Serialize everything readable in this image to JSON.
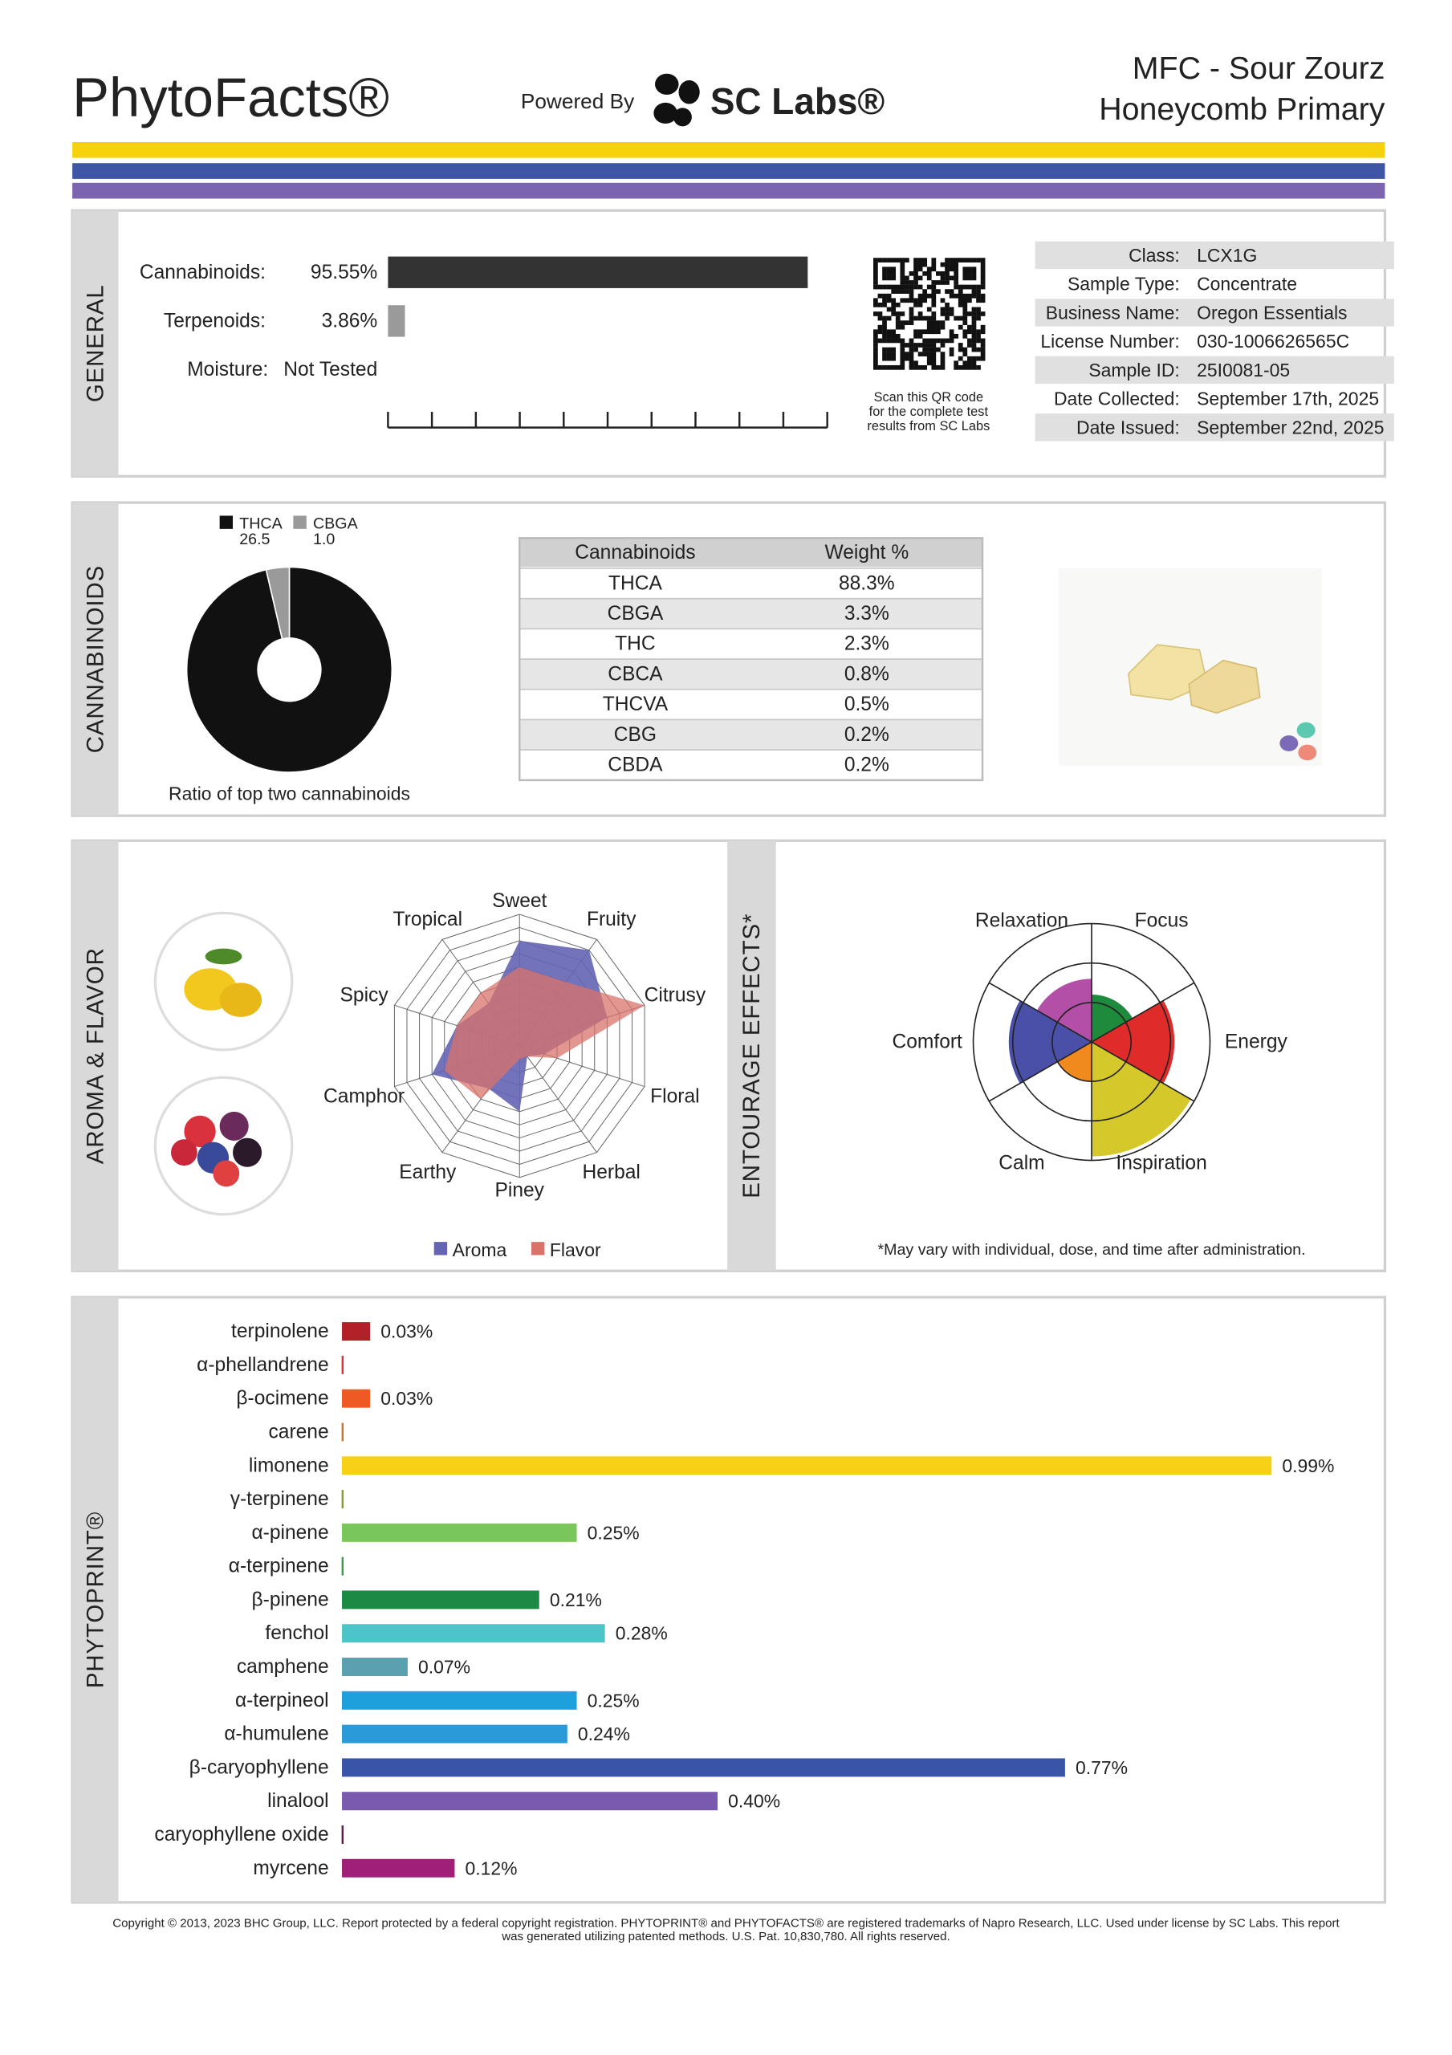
{
  "header": {
    "title": "PhytoFacts®",
    "powered_by": "Powered By",
    "lab": "SC Labs®",
    "product": "MFC - Sour Zourz",
    "product_sub": "Honeycomb Primary"
  },
  "general": {
    "section": "GENERAL",
    "bars": [
      {
        "name": "Cannabinoids:",
        "value": 95.55,
        "value_label": "95.55%",
        "color": "#333333"
      },
      {
        "name": "Terpenoids:",
        "value": 3.86,
        "value_label": "3.86%",
        "color": "#9a9a9a"
      }
    ],
    "moisture": {
      "name": "Moisture:",
      "value_label": "Not Tested"
    },
    "qr_caption": [
      "Scan this QR code",
      "for the complete test",
      "results from SC Labs"
    ],
    "info": [
      [
        "Class:",
        "LCX1G"
      ],
      [
        "Sample Type:",
        "Concentrate"
      ],
      [
        "Business Name:",
        "Oregon Essentials"
      ],
      [
        "License Number:",
        "030-1006626565C"
      ],
      [
        "Sample ID:",
        "25I0081-05"
      ],
      [
        "Date Collected:",
        "September 17th, 2025"
      ],
      [
        "Date Issued:",
        "September 22nd, 2025"
      ]
    ]
  },
  "cannabinoids": {
    "section": "CANNABINOIDS",
    "pie": {
      "type": "pie",
      "caption": "Ratio of top two cannabinoids",
      "series": [
        {
          "name": "THCA",
          "value": 26.5,
          "color": "#111111"
        },
        {
          "name": "CBGA",
          "value": 1.0,
          "value_label": "1.0",
          "color": "#9a9a9a"
        }
      ]
    },
    "table": {
      "header": [
        "Cannabinoids",
        "Weight %"
      ],
      "rows": [
        [
          "THCA",
          "88.3%"
        ],
        [
          "CBGA",
          "3.3%"
        ],
        [
          "THC",
          "2.3%"
        ],
        [
          "CBCA",
          "0.8%"
        ],
        [
          "THCVA",
          "0.5%"
        ],
        [
          "CBG",
          "0.2%"
        ],
        [
          "CBDA",
          "0.2%"
        ]
      ]
    }
  },
  "aroma": {
    "section": "AROMA & FLAVOR",
    "chart": {
      "type": "radar",
      "axes": [
        "Sweet",
        "Fruity",
        "Citrusy",
        "Floral",
        "Herbal",
        "Piney",
        "Earthy",
        "Camphor",
        "Spicy",
        "Tropical"
      ],
      "rlim": [
        0,
        10
      ],
      "series": [
        {
          "name": "Aroma",
          "color": "#6464b4",
          "values": [
            8,
            9,
            7,
            2,
            1,
            5,
            4,
            7,
            5,
            4
          ]
        },
        {
          "name": "Flavor",
          "color": "#d9736a",
          "values": [
            6,
            6,
            10,
            3,
            1,
            1,
            5,
            6,
            5,
            5
          ]
        }
      ]
    }
  },
  "entourage": {
    "section": "ENTOURAGE EFFECTS*",
    "note": "*May vary with individual, dose, and time after administration.",
    "chart": {
      "type": "polar-area",
      "rlim": [
        0,
        3
      ],
      "categories": [
        "Focus",
        "Energy",
        "Inspiration",
        "Calm",
        "Comfort",
        "Relaxation"
      ],
      "colors": [
        "#1e8a3c",
        "#e02b2b",
        "#d4c82a",
        "#f08a1e",
        "#4a4fa8",
        "#b44fa8"
      ],
      "values": [
        1.2,
        2.1,
        2.9,
        1.0,
        2.1,
        1.6
      ]
    }
  },
  "phytoprint": {
    "section": "PHYTOPRINT®",
    "terpenes": [
      {
        "name": "terpinolene",
        "value": 0.03,
        "value_label": "0.03%",
        "color": "#b22028"
      },
      {
        "name": "α-phellandrene",
        "value": null,
        "color": "#d8333a"
      },
      {
        "name": "β-ocimene",
        "value": 0.03,
        "value_label": "0.03%",
        "color": "#ef5a24"
      },
      {
        "name": "carene",
        "value": null,
        "color": "#c9742a"
      },
      {
        "name": "limonene",
        "value": 0.99,
        "value_label": "0.99%",
        "color": "#f7d117"
      },
      {
        "name": "γ-terpinene",
        "value": null,
        "color": "#8a9a2a"
      },
      {
        "name": "α-pinene",
        "value": 0.25,
        "value_label": "0.25%",
        "color": "#79c75a"
      },
      {
        "name": "α-terpinene",
        "value": null,
        "color": "#3a9a4a"
      },
      {
        "name": "β-pinene",
        "value": 0.21,
        "value_label": "0.21%",
        "color": "#1a8a44"
      },
      {
        "name": "fenchol",
        "value": 0.28,
        "value_label": "0.28%",
        "color": "#4cc4c8"
      },
      {
        "name": "camphene",
        "value": 0.07,
        "value_label": "0.07%",
        "color": "#5aa0b0"
      },
      {
        "name": "α-terpineol",
        "value": 0.25,
        "value_label": "0.25%",
        "color": "#1ea0dc"
      },
      {
        "name": "α-humulene",
        "value": 0.24,
        "value_label": "0.24%",
        "color": "#2a9ad8"
      },
      {
        "name": "β-caryophyllene",
        "value": 0.77,
        "value_label": "0.77%",
        "color": "#3a55a8"
      },
      {
        "name": "linalool",
        "value": 0.4,
        "value_label": "0.40%",
        "color": "#7a5aae"
      },
      {
        "name": "caryophyllene oxide",
        "value": null,
        "color": "#5a1a4a"
      },
      {
        "name": "myrcene",
        "value": 0.12,
        "value_label": "0.12%",
        "color": "#a02078"
      }
    ]
  },
  "footer": [
    "Copyright © 2013, 2023 BHC Group, LLC. Report protected by a federal copyright registration. PHYTOPRINT® and PHYTOFACTS® are registered trademarks of Napro Research, LLC. Used under license by SC Labs. This report",
    "was generated utilizing patented methods. U.S. Pat. 10,830,780. All rights reserved."
  ]
}
